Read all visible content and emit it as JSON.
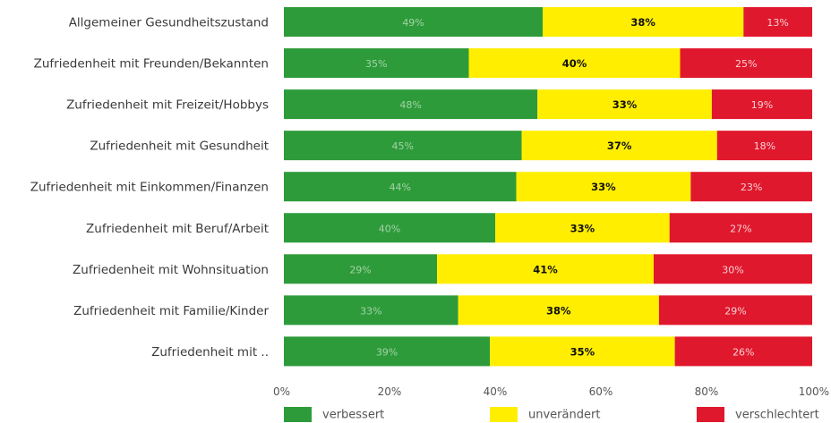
{
  "chart_data": {
    "type": "bar",
    "orientation": "horizontal",
    "stacked": true,
    "categories": [
      "Allgemeiner Gesundheitszustand",
      "Zufriedenheit mit Freunden/Bekannten",
      "Zufriedenheit mit Freizeit/Hobbys",
      "Zufriedenheit mit Gesundheit",
      "Zufriedenheit mit Einkommen/Finanzen",
      "Zufriedenheit mit Beruf/Arbeit",
      "Zufriedenheit mit Wohnsituation",
      "Zufriedenheit mit Familie/Kinder",
      "Zufriedenheit mit .."
    ],
    "series": [
      {
        "name": "verbessert",
        "color": "#2e9b3a",
        "values": [
          49,
          35,
          48,
          45,
          44,
          40,
          29,
          33,
          39
        ]
      },
      {
        "name": "unverändert",
        "color": "#ffee00",
        "values": [
          38,
          40,
          33,
          37,
          33,
          33,
          41,
          38,
          35
        ]
      },
      {
        "name": "verschlechtert",
        "color": "#e0182d",
        "values": [
          13,
          25,
          19,
          18,
          23,
          27,
          30,
          29,
          26
        ]
      }
    ],
    "value_labels": [
      [
        "49%",
        "38%",
        "13%"
      ],
      [
        "35%",
        "40%",
        "25%"
      ],
      [
        "48%",
        "33%",
        "19%"
      ],
      [
        "45%",
        "37%",
        "18%"
      ],
      [
        "44%",
        "33%",
        "23%"
      ],
      [
        "40%",
        "33%",
        "27%"
      ],
      [
        "29%",
        "41%",
        "30%"
      ],
      [
        "33%",
        "38%",
        "29%"
      ],
      [
        "39%",
        "35%",
        "26%"
      ]
    ],
    "x_ticks": [
      "0%",
      "20%",
      "40%",
      "60%",
      "80%",
      "100%"
    ],
    "xlim": [
      0,
      100
    ],
    "title": "",
    "xlabel": "",
    "ylabel": "",
    "grid": false,
    "legend_position": "bottom"
  }
}
